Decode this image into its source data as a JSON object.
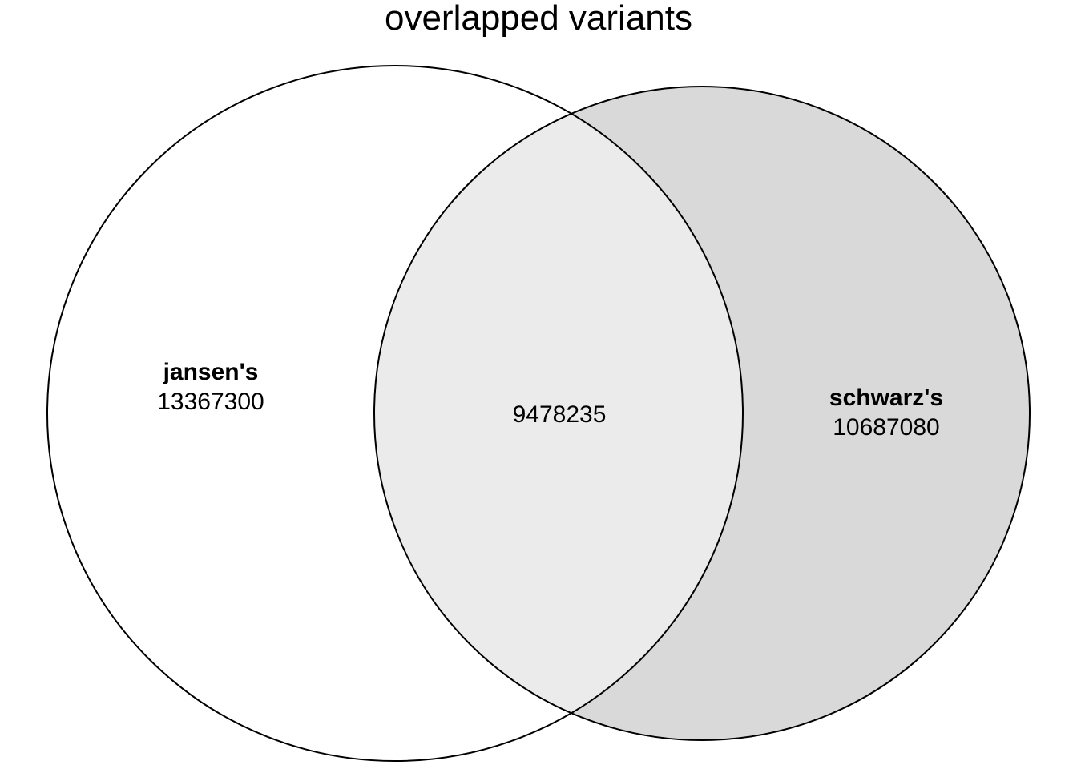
{
  "diagram": {
    "title": "overlapped variants",
    "type": "venn",
    "sets": [
      {
        "id": "a",
        "name": "jansen's",
        "only_count": "13367300",
        "fill": "#ffffff"
      },
      {
        "id": "b",
        "name": "schwarz's",
        "only_count": "10687080",
        "fill": "#d9d9d9"
      }
    ],
    "intersection": {
      "count": "9478235",
      "fill": "#ebebeb"
    },
    "stroke": "#000000"
  }
}
